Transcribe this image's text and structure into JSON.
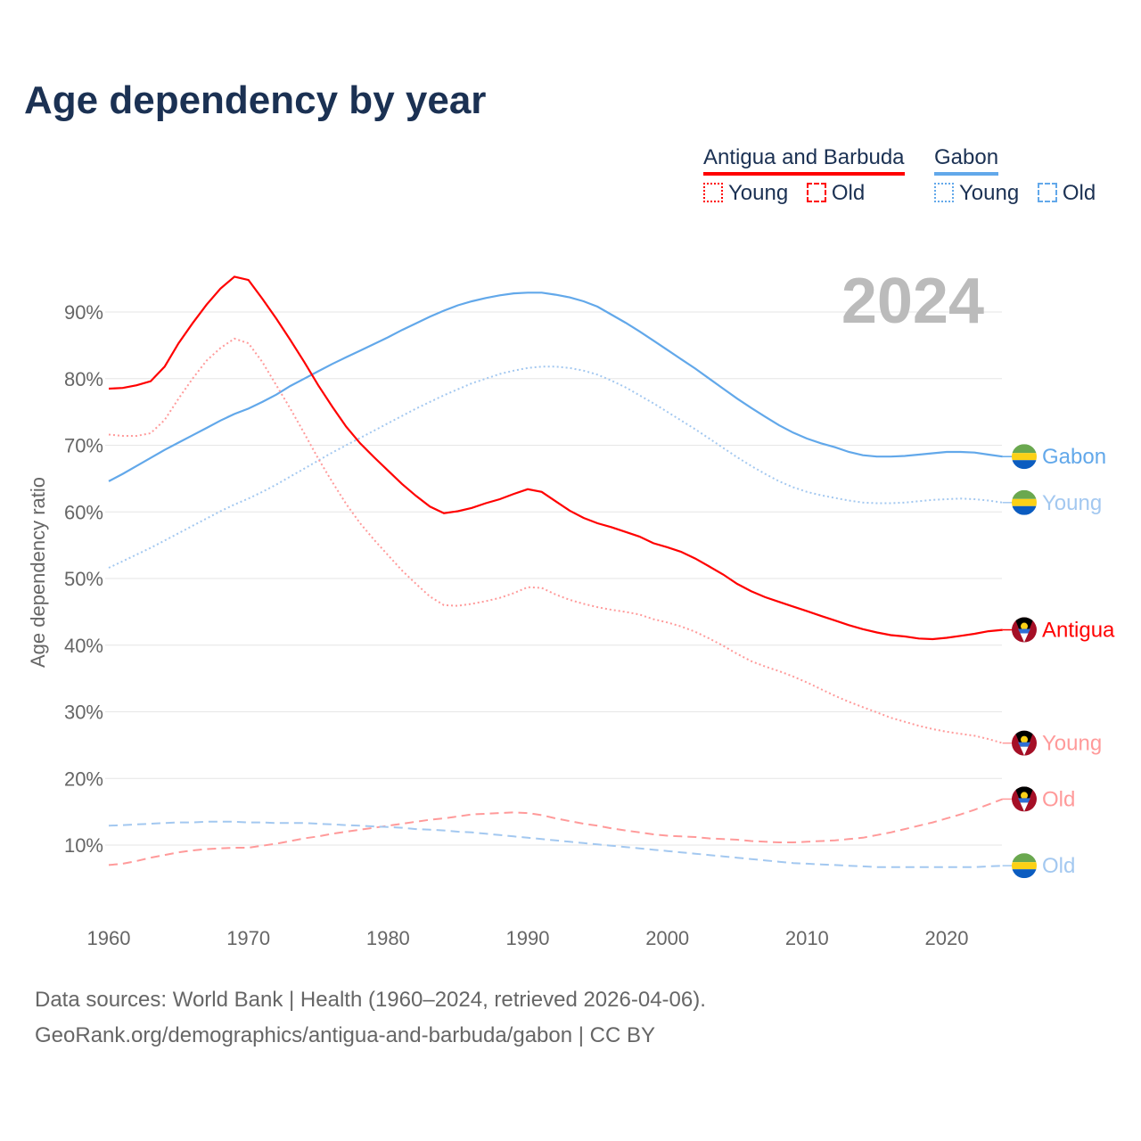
{
  "title": "Age dependency by year",
  "legend": {
    "groups": [
      {
        "name": "Antigua and Barbuda",
        "color": "#ff0000",
        "young": "Young",
        "old": "Old"
      },
      {
        "name": "Gabon",
        "color": "#62a8ea",
        "young": "Young",
        "old": "Old"
      }
    ]
  },
  "year_label": "2024",
  "footer": {
    "line1": "Data sources: World Bank | Health (1960–2024, retrieved 2026-04-06).",
    "line2": "GeoRank.org/demographics/antigua-and-barbuda/gabon | CC BY"
  },
  "chart_data": {
    "type": "line",
    "title": "Age dependency by year",
    "xlabel": "",
    "ylabel": "Age dependency ratio",
    "xlim": [
      1960,
      2024
    ],
    "ylim": [
      0,
      100
    ],
    "x_ticks": [
      "1960",
      "1970",
      "1980",
      "1990",
      "2000",
      "2010",
      "2020"
    ],
    "y_ticks": [
      "10%",
      "20%",
      "30%",
      "40%",
      "50%",
      "60%",
      "70%",
      "80%",
      "90%"
    ],
    "grid": true,
    "x_start": 1960,
    "series": [
      {
        "name": "Gabon",
        "end_label": "Gabon",
        "country": "gabon",
        "style": "solid",
        "color": "#62a8ea",
        "values": [
          64.6,
          65.7,
          66.9,
          68.1,
          69.3,
          70.4,
          71.5,
          72.6,
          73.7,
          74.7,
          75.5,
          76.5,
          77.6,
          78.9,
          80,
          81.1,
          82.2,
          83.2,
          84.2,
          85.2,
          86.2,
          87.3,
          88.3,
          89.3,
          90.2,
          91,
          91.6,
          92.1,
          92.5,
          92.8,
          92.9,
          92.9,
          92.6,
          92.2,
          91.6,
          90.8,
          89.6,
          88.4,
          87.1,
          85.7,
          84.3,
          82.9,
          81.5,
          80,
          78.5,
          77,
          75.6,
          74.3,
          73,
          71.9,
          71,
          70.3,
          69.7,
          69,
          68.5,
          68.3,
          68.3,
          68.4,
          68.6,
          68.8,
          69,
          69,
          68.9,
          68.6,
          68.3
        ]
      },
      {
        "name": "Gabon Young",
        "end_label": "Young",
        "country": "gabon",
        "style": "dotted",
        "color": "#a3c8f0",
        "values": [
          51.6,
          52.6,
          53.6,
          54.6,
          55.7,
          56.8,
          57.9,
          59,
          60.1,
          61.1,
          62,
          63,
          64.1,
          65.3,
          66.5,
          67.7,
          68.9,
          70,
          71.1,
          72.2,
          73.3,
          74.4,
          75.5,
          76.5,
          77.5,
          78.4,
          79.3,
          80,
          80.7,
          81.2,
          81.6,
          81.8,
          81.8,
          81.6,
          81.2,
          80.6,
          79.7,
          78.7,
          77.5,
          76.3,
          75,
          73.7,
          72.4,
          71,
          69.6,
          68.2,
          66.9,
          65.7,
          64.6,
          63.7,
          63,
          62.5,
          62.1,
          61.7,
          61.4,
          61.3,
          61.3,
          61.4,
          61.6,
          61.8,
          61.9,
          62,
          61.9,
          61.7,
          61.4
        ]
      },
      {
        "name": "Antigua and Barbuda",
        "end_label": "Antigua",
        "country": "antigua",
        "style": "solid",
        "color": "#ff0000",
        "values": [
          78.5,
          78.6,
          79,
          79.6,
          81.8,
          85.3,
          88.3,
          91.1,
          93.5,
          95.3,
          94.8,
          92,
          89,
          85.8,
          82.5,
          79,
          75.8,
          72.8,
          70.3,
          68.2,
          66.2,
          64.2,
          62.4,
          60.8,
          59.8,
          60.1,
          60.6,
          61.3,
          61.9,
          62.7,
          63.4,
          63,
          61.6,
          60.2,
          59.1,
          58.3,
          57.7,
          57,
          56.3,
          55.3,
          54.7,
          54,
          53,
          51.8,
          50.6,
          49.2,
          48.1,
          47.2,
          46.5,
          45.8,
          45.1,
          44.4,
          43.7,
          43,
          42.4,
          41.9,
          41.5,
          41.3,
          41,
          40.9,
          41.1,
          41.4,
          41.7,
          42.1,
          42.3
        ]
      },
      {
        "name": "Antigua and Barbuda Young",
        "end_label": "Young",
        "country": "antigua",
        "style": "dotted",
        "color": "#ff9a9a",
        "values": [
          71.6,
          71.4,
          71.4,
          71.8,
          73.8,
          77,
          80,
          82.7,
          84.6,
          86,
          85.3,
          82.5,
          79,
          75.5,
          71.8,
          68,
          64.5,
          61.2,
          58.3,
          55.8,
          53.5,
          51.2,
          49.2,
          47.3,
          46,
          45.9,
          46.2,
          46.6,
          47.1,
          47.8,
          48.7,
          48.6,
          47.6,
          46.8,
          46.2,
          45.7,
          45.3,
          45,
          44.6,
          43.9,
          43.4,
          42.8,
          42,
          41,
          39.9,
          38.7,
          37.6,
          36.8,
          36.1,
          35.3,
          34.4,
          33.4,
          32.4,
          31.5,
          30.7,
          29.9,
          29.1,
          28.5,
          27.9,
          27.4,
          27,
          26.7,
          26.4,
          25.9,
          25.3
        ]
      },
      {
        "name": "Antigua and Barbuda Old",
        "end_label": "Old",
        "country": "antigua",
        "style": "dashed",
        "color": "#ff9a9a",
        "values": [
          7,
          7.2,
          7.6,
          8.1,
          8.5,
          8.9,
          9.2,
          9.4,
          9.5,
          9.6,
          9.6,
          9.9,
          10.2,
          10.6,
          11,
          11.3,
          11.7,
          12,
          12.3,
          12.6,
          12.9,
          13.2,
          13.5,
          13.8,
          14,
          14.3,
          14.6,
          14.7,
          14.8,
          14.9,
          14.8,
          14.5,
          14,
          13.6,
          13.2,
          12.9,
          12.5,
          12.2,
          11.9,
          11.6,
          11.4,
          11.3,
          11.2,
          11,
          10.9,
          10.8,
          10.6,
          10.5,
          10.4,
          10.4,
          10.5,
          10.6,
          10.7,
          10.9,
          11.1,
          11.5,
          11.9,
          12.4,
          12.9,
          13.4,
          14,
          14.6,
          15.3,
          16.1,
          16.9
        ]
      },
      {
        "name": "Gabon Old",
        "end_label": "Old",
        "country": "gabon",
        "style": "dashed",
        "color": "#a3c8f0",
        "values": [
          12.9,
          13,
          13.1,
          13.2,
          13.3,
          13.4,
          13.4,
          13.5,
          13.5,
          13.5,
          13.4,
          13.4,
          13.3,
          13.3,
          13.3,
          13.2,
          13.1,
          13,
          12.9,
          12.8,
          12.7,
          12.6,
          12.4,
          12.3,
          12.2,
          12,
          11.9,
          11.7,
          11.5,
          11.3,
          11.1,
          10.9,
          10.7,
          10.5,
          10.3,
          10.1,
          9.9,
          9.7,
          9.5,
          9.3,
          9.1,
          8.9,
          8.7,
          8.5,
          8.3,
          8.1,
          7.9,
          7.7,
          7.5,
          7.3,
          7.2,
          7.1,
          7,
          6.9,
          6.8,
          6.7,
          6.7,
          6.7,
          6.7,
          6.7,
          6.7,
          6.7,
          6.7,
          6.8,
          6.9
        ]
      }
    ]
  }
}
